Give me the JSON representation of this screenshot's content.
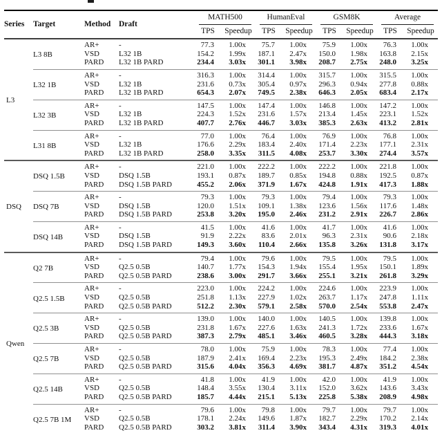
{
  "colors": {
    "background": "#ffffff",
    "text": "#111111",
    "rule_heavy": "#000000",
    "rule_header": "#3c3c3c",
    "rule_section": "#5a5a5a",
    "rule_group": "#8f8f8f"
  },
  "table": {
    "columns": {
      "series": "Series",
      "target": "Target",
      "method": "Method",
      "draft": "Draft"
    },
    "metric_groups": [
      {
        "label": "MATH500",
        "sub": [
          "TPS",
          "Speedup"
        ]
      },
      {
        "label": "HumanEval",
        "sub": [
          "TPS",
          "Speedup"
        ]
      },
      {
        "label": "GSM8K",
        "sub": [
          "TPS",
          "Speedup"
        ]
      },
      {
        "label": "Average",
        "sub": [
          "TPS",
          "Speedup"
        ]
      }
    ],
    "sections": [
      {
        "series": "L3",
        "groups": [
          {
            "target": "L3 8B",
            "rows": [
              {
                "method": "AR+",
                "draft": "-",
                "bold": false,
                "values": [
                  "77.3",
                  "1.00x",
                  "75.7",
                  "1.00x",
                  "75.9",
                  "1.00x",
                  "76.3",
                  "1.00x"
                ]
              },
              {
                "method": "VSD",
                "draft": "L32 1B",
                "bold": false,
                "values": [
                  "154.2",
                  "1.99x",
                  "187.1",
                  "2.47x",
                  "150.0",
                  "1.98x",
                  "163.8",
                  "2.15x"
                ]
              },
              {
                "method": "PARD",
                "draft": "L32 1B PARD",
                "bold": true,
                "values": [
                  "234.4",
                  "3.03x",
                  "301.1",
                  "3.98x",
                  "208.7",
                  "2.75x",
                  "248.0",
                  "3.25x"
                ]
              }
            ]
          },
          {
            "target": "L32 1B",
            "rows": [
              {
                "method": "AR+",
                "draft": "-",
                "bold": false,
                "values": [
                  "316.3",
                  "1.00x",
                  "314.4",
                  "1.00x",
                  "315.7",
                  "1.00x",
                  "315.5",
                  "1.00x"
                ]
              },
              {
                "method": "VSD",
                "draft": "L32 1B",
                "bold": false,
                "values": [
                  "231.6",
                  "0.73x",
                  "305.4",
                  "0.97x",
                  "296.3",
                  "0.94x",
                  "277.8",
                  "0.88x"
                ]
              },
              {
                "method": "PARD",
                "draft": "L32 1B PARD",
                "bold": true,
                "values": [
                  "654.3",
                  "2.07x",
                  "749.5",
                  "2.38x",
                  "646.3",
                  "2.05x",
                  "683.4",
                  "2.17x"
                ]
              }
            ]
          },
          {
            "target": "L32 3B",
            "rows": [
              {
                "method": "AR+",
                "draft": "-",
                "bold": false,
                "values": [
                  "147.5",
                  "1.00x",
                  "147.4",
                  "1.00x",
                  "146.8",
                  "1.00x",
                  "147.2",
                  "1.00x"
                ]
              },
              {
                "method": "VSD",
                "draft": "L32 1B",
                "bold": false,
                "values": [
                  "224.3",
                  "1.52x",
                  "231.6",
                  "1.57x",
                  "213.4",
                  "1.45x",
                  "223.1",
                  "1.52x"
                ]
              },
              {
                "method": "PARD",
                "draft": "L32 1B PARD",
                "bold": true,
                "values": [
                  "407.7",
                  "2.76x",
                  "446.7",
                  "3.03x",
                  "385.3",
                  "2.63x",
                  "413.2",
                  "2.81x"
                ]
              }
            ]
          },
          {
            "target": "L31 8B",
            "rows": [
              {
                "method": "AR+",
                "draft": "-",
                "bold": false,
                "values": [
                  "77.0",
                  "1.00x",
                  "76.4",
                  "1.00x",
                  "76.9",
                  "1.00x",
                  "76.8",
                  "1.00x"
                ]
              },
              {
                "method": "VSD",
                "draft": "L32 1B",
                "bold": false,
                "values": [
                  "176.6",
                  "2.29x",
                  "183.4",
                  "2.40x",
                  "171.4",
                  "2.23x",
                  "177.1",
                  "2.31x"
                ]
              },
              {
                "method": "PARD",
                "draft": "L32 1B PARD",
                "bold": true,
                "values": [
                  "258.0",
                  "3.35x",
                  "311.5",
                  "4.08x",
                  "253.7",
                  "3.30x",
                  "274.4",
                  "3.57x"
                ]
              }
            ]
          }
        ]
      },
      {
        "series": "DSQ",
        "groups": [
          {
            "target": "DSQ 1.5B",
            "rows": [
              {
                "method": "AR+",
                "draft": "-",
                "bold": false,
                "values": [
                  "221.0",
                  "1.00x",
                  "222.2",
                  "1.00x",
                  "222.2",
                  "1.00x",
                  "221.8",
                  "1.00x"
                ]
              },
              {
                "method": "VSD",
                "draft": "DSQ 1.5B",
                "bold": false,
                "values": [
                  "193.1",
                  "0.87x",
                  "189.7",
                  "0.85x",
                  "194.8",
                  "0.88x",
                  "192.5",
                  "0.87x"
                ]
              },
              {
                "method": "PARD",
                "draft": "DSQ 1.5B PARD",
                "bold": true,
                "values": [
                  "455.2",
                  "2.06x",
                  "371.9",
                  "1.67x",
                  "424.8",
                  "1.91x",
                  "417.3",
                  "1.88x"
                ]
              }
            ]
          },
          {
            "target": "DSQ 7B",
            "rows": [
              {
                "method": "AR+",
                "draft": "-",
                "bold": false,
                "values": [
                  "79.3",
                  "1.00x",
                  "79.3",
                  "1.00x",
                  "79.4",
                  "1.00x",
                  "79.3",
                  "1.00x"
                ]
              },
              {
                "method": "VSD",
                "draft": "DSQ 1.5B",
                "bold": false,
                "values": [
                  "120.0",
                  "1.51x",
                  "109.1",
                  "1.38x",
                  "123.6",
                  "1.56x",
                  "117.6",
                  "1.48x"
                ]
              },
              {
                "method": "PARD",
                "draft": "DSQ 1.5B PARD",
                "bold": true,
                "values": [
                  "253.8",
                  "3.20x",
                  "195.0",
                  "2.46x",
                  "231.2",
                  "2.91x",
                  "226.7",
                  "2.86x"
                ]
              }
            ]
          },
          {
            "target": "DSQ 14B",
            "rows": [
              {
                "method": "AR+",
                "draft": "-",
                "bold": false,
                "values": [
                  "41.5",
                  "1.00x",
                  "41.6",
                  "1.00x",
                  "41.7",
                  "1.00x",
                  "41.6",
                  "1.00x"
                ]
              },
              {
                "method": "VSD",
                "draft": "DSQ 1.5B",
                "bold": false,
                "values": [
                  "91.9",
                  "2.22x",
                  "83.6",
                  "2.01x",
                  "96.3",
                  "2.31x",
                  "90.6",
                  "2.18x"
                ]
              },
              {
                "method": "PARD",
                "draft": "DSQ 1.5B PARD",
                "bold": true,
                "values": [
                  "149.3",
                  "3.60x",
                  "110.4",
                  "2.66x",
                  "135.8",
                  "3.26x",
                  "131.8",
                  "3.17x"
                ]
              }
            ]
          }
        ]
      },
      {
        "series": "Qwen",
        "groups": [
          {
            "target": "Q2 7B",
            "rows": [
              {
                "method": "AR+",
                "draft": "-",
                "bold": false,
                "values": [
                  "79.4",
                  "1.00x",
                  "79.6",
                  "1.00x",
                  "79.5",
                  "1.00x",
                  "79.5",
                  "1.00x"
                ]
              },
              {
                "method": "VSD",
                "draft": "Q2.5 0.5B",
                "bold": false,
                "values": [
                  "140.7",
                  "1.77x",
                  "154.3",
                  "1.94x",
                  "155.4",
                  "1.95x",
                  "150.1",
                  "1.89x"
                ]
              },
              {
                "method": "PARD",
                "draft": "Q2.5 0.5B PARD",
                "bold": true,
                "values": [
                  "238.6",
                  "3.00x",
                  "291.7",
                  "3.66x",
                  "255.1",
                  "3.21x",
                  "261.8",
                  "3.29x"
                ]
              }
            ]
          },
          {
            "target": "Q2.5 1.5B",
            "rows": [
              {
                "method": "AR+",
                "draft": "-",
                "bold": false,
                "values": [
                  "223.0",
                  "1.00x",
                  "224.2",
                  "1.00x",
                  "224.6",
                  "1.00x",
                  "223.9",
                  "1.00x"
                ]
              },
              {
                "method": "VSD",
                "draft": "Q2.5 0.5B",
                "bold": false,
                "values": [
                  "251.8",
                  "1.13x",
                  "227.9",
                  "1.02x",
                  "263.7",
                  "1.17x",
                  "247.8",
                  "1.11x"
                ]
              },
              {
                "method": "PARD",
                "draft": "Q2.5 0.5B PARD",
                "bold": true,
                "values": [
                  "512.2",
                  "2.30x",
                  "579.1",
                  "2.58x",
                  "570.0",
                  "2.54x",
                  "553.8",
                  "2.47x"
                ]
              }
            ]
          },
          {
            "target": "Q2.5 3B",
            "rows": [
              {
                "method": "AR+",
                "draft": "-",
                "bold": false,
                "values": [
                  "139.0",
                  "1.00x",
                  "140.0",
                  "1.00x",
                  "140.5",
                  "1.00x",
                  "139.8",
                  "1.00x"
                ]
              },
              {
                "method": "VSD",
                "draft": "Q2.5 0.5B",
                "bold": false,
                "values": [
                  "231.8",
                  "1.67x",
                  "227.6",
                  "1.63x",
                  "241.3",
                  "1.72x",
                  "233.6",
                  "1.67x"
                ]
              },
              {
                "method": "PARD",
                "draft": "Q2.5 0.5B PARD",
                "bold": true,
                "values": [
                  "387.3",
                  "2.79x",
                  "485.1",
                  "3.46x",
                  "460.5",
                  "3.28x",
                  "444.3",
                  "3.18x"
                ]
              }
            ]
          },
          {
            "target": "Q2.5 7B",
            "rows": [
              {
                "method": "AR+",
                "draft": "-",
                "bold": false,
                "values": [
                  "78.0",
                  "1.00x",
                  "75.9",
                  "1.00x",
                  "78.3",
                  "1.00x",
                  "77.4",
                  "1.00x"
                ]
              },
              {
                "method": "VSD",
                "draft": "Q2.5 0.5B",
                "bold": false,
                "values": [
                  "187.9",
                  "2.41x",
                  "169.4",
                  "2.23x",
                  "195.3",
                  "2.49x",
                  "184.2",
                  "2.38x"
                ]
              },
              {
                "method": "PARD",
                "draft": "Q2.5 0.5B PARD",
                "bold": true,
                "values": [
                  "315.6",
                  "4.04x",
                  "356.3",
                  "4.69x",
                  "381.7",
                  "4.87x",
                  "351.2",
                  "4.54x"
                ]
              }
            ]
          },
          {
            "target": "Q2.5 14B",
            "rows": [
              {
                "method": "AR+",
                "draft": "-",
                "bold": false,
                "values": [
                  "41.8",
                  "1.00x",
                  "41.9",
                  "1.00x",
                  "42.0",
                  "1.00x",
                  "41.9",
                  "1.00x"
                ]
              },
              {
                "method": "VSD",
                "draft": "Q2.5 0.5B",
                "bold": false,
                "values": [
                  "148.4",
                  "3.55x",
                  "130.4",
                  "3.11x",
                  "152.0",
                  "3.62x",
                  "143.6",
                  "3.43x"
                ]
              },
              {
                "method": "PARD",
                "draft": "Q2.5 0.5B PARD",
                "bold": true,
                "values": [
                  "185.7",
                  "4.44x",
                  "215.1",
                  "5.13x",
                  "225.8",
                  "5.38x",
                  "208.9",
                  "4.98x"
                ]
              }
            ]
          },
          {
            "target": "Q2.5 7B 1M",
            "rows": [
              {
                "method": "AR+",
                "draft": "-",
                "bold": false,
                "values": [
                  "79.6",
                  "1.00x",
                  "79.8",
                  "1.00x",
                  "79.7",
                  "1.00x",
                  "79.7",
                  "1.00x"
                ]
              },
              {
                "method": "VSD",
                "draft": "Q2.5 0.5B",
                "bold": false,
                "values": [
                  "178.1",
                  "2.24x",
                  "149.6",
                  "1.87x",
                  "182.7",
                  "2.29x",
                  "170.2",
                  "2.14x"
                ]
              },
              {
                "method": "PARD",
                "draft": "Q2.5 0.5B PARD",
                "bold": true,
                "values": [
                  "303.2",
                  "3.81x",
                  "311.4",
                  "3.90x",
                  "343.4",
                  "4.31x",
                  "319.3",
                  "4.01x"
                ]
              }
            ]
          }
        ]
      }
    ]
  }
}
